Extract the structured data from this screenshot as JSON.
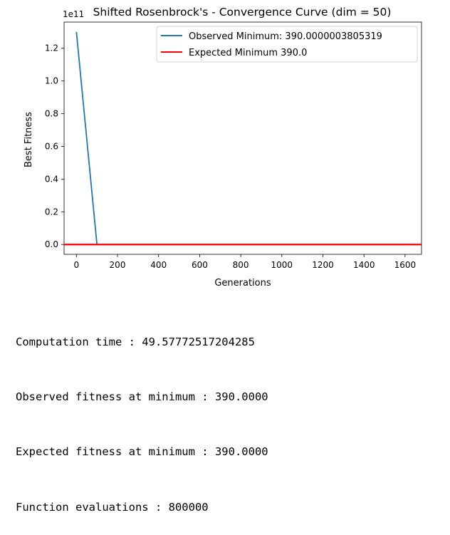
{
  "chart_data": {
    "type": "line",
    "title": "Shifted Rosenbrock's - Convergence Curve (dim = 50)",
    "xlabel": "Generations",
    "ylabel": "Best Fitness",
    "offset_text": "1e11",
    "xlim": [
      -60,
      1680
    ],
    "ylim": [
      -0.06,
      1.36
    ],
    "xticks": [
      0,
      200,
      400,
      600,
      800,
      1000,
      1200,
      1400,
      1600
    ],
    "yticks": [
      0.0,
      0.2,
      0.4,
      0.6,
      0.8,
      1.0,
      1.2
    ],
    "ytick_labels": [
      "0.0",
      "0.2",
      "0.4",
      "0.6",
      "0.8",
      "1.0",
      "1.2"
    ],
    "grid": false,
    "legend_position": "upper right",
    "series": [
      {
        "name": "Observed Minimum: 390.0000003805319",
        "color": "#1f77b4",
        "x": [
          0,
          100,
          200,
          300,
          400,
          500,
          600,
          700,
          800,
          900,
          1000,
          1100,
          1200,
          1300,
          1400,
          1500,
          1600
        ],
        "y": [
          1.3,
          0.0,
          0.0,
          0.0,
          0.0,
          0.0,
          0.0,
          0.0,
          0.0,
          0.0,
          0.0,
          0.0,
          0.0,
          0.0,
          0.0,
          0.0,
          0.0
        ]
      },
      {
        "name": "Expected Minimum 390.0",
        "color": "#ff0000",
        "type": "hline",
        "y": 0.0
      }
    ]
  },
  "output_lines": [
    "Computation time : 49.57772517204285",
    "Observed fitness at minimum : 390.0000",
    "Expected fitness at minimum : 390.0000",
    "Function evaluations : 800000"
  ]
}
